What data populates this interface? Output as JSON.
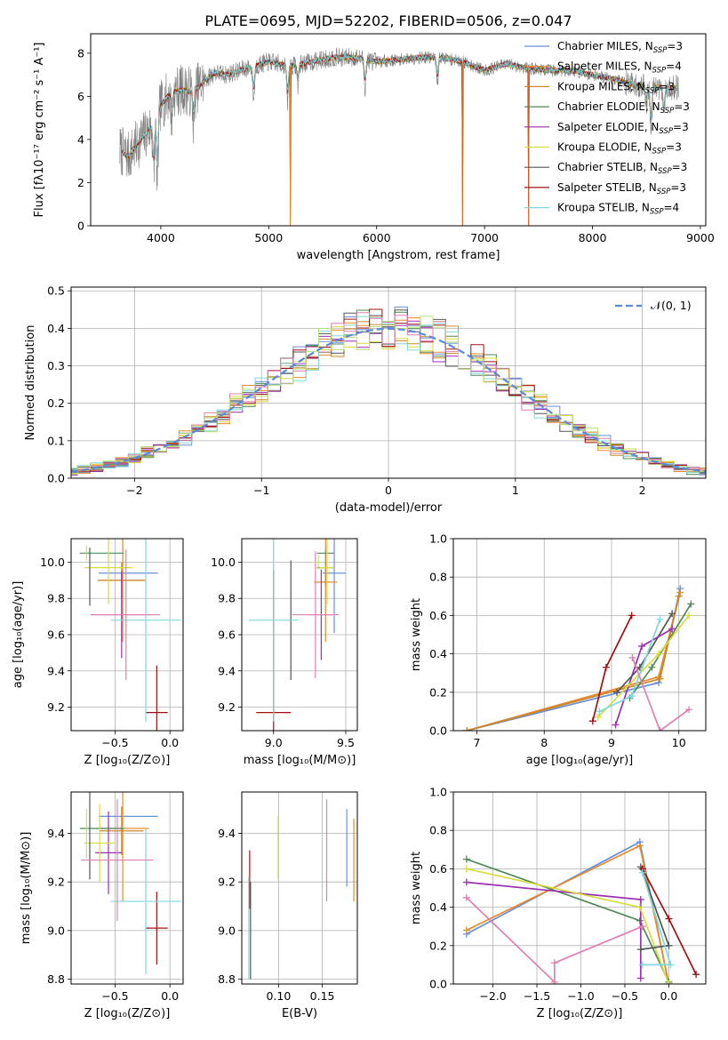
{
  "figure_title": "PLATE=0695, MJD=52202, FIBERID=0506, z=0.047",
  "colors": {
    "Chabrier MILES": "#6a8fd9",
    "Salpeter MILES": "#e8892a",
    "Kroupa MILES": "#c8882a",
    "Chabrier ELODIE": "#4f8a55",
    "Salpeter ELODIE": "#9a2fb0",
    "Kroupa ELODIE": "#d6dc3c",
    "Chabrier STELIB": "#555555",
    "Salpeter STELIB": "#a01010",
    "Kroupa STELIB": "#7fd8dc",
    "pink": "#e07fb0",
    "green2": "#b8e07a"
  },
  "chart_data": [
    {
      "id": "spectrum",
      "type": "line",
      "title": "PLATE=0695, MJD=52202, FIBERID=0506, z=0.047",
      "xlabel": "wavelength [Angstrom, rest frame]",
      "ylabel": "Flux [fλ10⁻¹⁷ erg cm⁻² s⁻¹ A⁻¹]",
      "xlim": [
        3350,
        9050
      ],
      "ylim": [
        0,
        8.9
      ],
      "xticks": [
        4000,
        5000,
        6000,
        7000,
        8000,
        9000
      ],
      "yticks": [
        0,
        2,
        4,
        6,
        8
      ],
      "legend_position": "top-right",
      "legend": [
        {
          "label": "Chabrier MILES, N",
          "sub": "SSP",
          "tail": "=3",
          "color": "#6a8fd9"
        },
        {
          "label": "Salpeter MILES, N",
          "sub": "SSP",
          "tail": "=4",
          "color": "#e8892a"
        },
        {
          "label": "Kroupa MILES, N",
          "sub": "SSP",
          "tail": "=3",
          "color": "#c8882a"
        },
        {
          "label": "Chabrier ELODIE, N",
          "sub": "SSP",
          "tail": "=3",
          "color": "#4f8a55"
        },
        {
          "label": "Salpeter ELODIE, N",
          "sub": "SSP",
          "tail": "=3",
          "color": "#9a2fb0"
        },
        {
          "label": "Kroupa ELODIE, N",
          "sub": "SSP",
          "tail": "=3",
          "color": "#d6dc3c"
        },
        {
          "label": "Chabrier STELIB, N",
          "sub": "SSP",
          "tail": "=3",
          "color": "#555555"
        },
        {
          "label": "Salpeter STELIB, N",
          "sub": "SSP",
          "tail": "=3",
          "color": "#a01010"
        },
        {
          "label": "Kroupa STELIB, N",
          "sub": "SSP",
          "tail": "=4",
          "color": "#7fd8dc"
        }
      ],
      "continuum_nodes": [
        [
          3620,
          3.5
        ],
        [
          3700,
          3.2
        ],
        [
          3800,
          3.9
        ],
        [
          3900,
          4.5
        ],
        [
          4000,
          5.6
        ],
        [
          4100,
          6.2
        ],
        [
          4200,
          6.3
        ],
        [
          4300,
          6.2
        ],
        [
          4400,
          6.7
        ],
        [
          4500,
          7.1
        ],
        [
          4600,
          7.0
        ],
        [
          4800,
          7.3
        ],
        [
          5000,
          7.6
        ],
        [
          5200,
          7.4
        ],
        [
          5400,
          7.6
        ],
        [
          5600,
          7.8
        ],
        [
          5800,
          7.8
        ],
        [
          6000,
          7.6
        ],
        [
          6200,
          7.7
        ],
        [
          6400,
          7.8
        ],
        [
          6600,
          7.8
        ],
        [
          6800,
          7.6
        ],
        [
          7000,
          7.2
        ],
        [
          7200,
          7.5
        ],
        [
          7400,
          7.3
        ],
        [
          7600,
          7.2
        ],
        [
          7800,
          7.2
        ],
        [
          8000,
          7.0
        ],
        [
          8200,
          6.8
        ],
        [
          8400,
          6.5
        ],
        [
          8600,
          6.4
        ],
        [
          8800,
          6.4
        ]
      ],
      "absorption_lines": [
        [
          3934,
          2.4
        ],
        [
          3968,
          2.0
        ],
        [
          4102,
          5.0
        ],
        [
          4304,
          4.8
        ],
        [
          4861,
          5.9
        ],
        [
          5175,
          5.7
        ],
        [
          5270,
          6.5
        ],
        [
          5893,
          6.4
        ],
        [
          6563,
          6.6
        ],
        [
          8498,
          5.5
        ],
        [
          8542,
          4.4
        ],
        [
          8662,
          5.0
        ]
      ],
      "data_dropouts": [
        [
          5199,
          0
        ],
        [
          6795,
          0
        ],
        [
          7410,
          0
        ]
      ]
    },
    {
      "id": "residuals",
      "type": "histogram",
      "xlabel": "(data-model)/error",
      "ylabel": "Normed distribution",
      "xlim": [
        -2.5,
        2.5
      ],
      "ylim": [
        0,
        0.51
      ],
      "xticks": [
        -2,
        -1,
        0,
        1,
        2
      ],
      "yticks": [
        0.0,
        0.1,
        0.2,
        0.3,
        0.4,
        0.5
      ],
      "bin_width": 0.1,
      "legend_position": "top-right",
      "legend_label": "𝒩(0, 1)",
      "gaussian": {
        "mean": 0,
        "sigma": 1,
        "color": "#5b8ad6"
      }
    },
    {
      "id": "age-vs-Z",
      "type": "errorbar",
      "xlabel": "Z [log₁₀(Z/Z⊙)]",
      "ylabel": "age  [log₁₀(age/yr)]",
      "xlim": [
        -0.9,
        0.12
      ],
      "ylim": [
        9.07,
        10.13
      ],
      "xticks": [
        -0.5,
        0.0
      ],
      "yticks": [
        9.2,
        9.4,
        9.6,
        9.8,
        10.0
      ],
      "points": [
        {
          "x": -0.38,
          "y": 9.94,
          "xerr": 0.27,
          "yerr": 0.0,
          "color": "#6a8fd9"
        },
        {
          "x": -0.43,
          "y": 9.9,
          "xerr": 0.2,
          "yerr": 0.34,
          "color": "#e8892a"
        },
        {
          "x": -0.44,
          "y": 9.9,
          "xerr": 0.22,
          "yerr": 0.1,
          "color": "#c8882a"
        },
        {
          "x": -0.62,
          "y": 10.05,
          "xerr": 0.2,
          "yerr": 0.0,
          "color": "#4f8a55"
        },
        {
          "x": -0.44,
          "y": 9.71,
          "xerr": 0.28,
          "yerr": 0.24,
          "color": "#9a2fb0"
        },
        {
          "x": -0.56,
          "y": 9.97,
          "xerr": 0.22,
          "yerr": 0.2,
          "color": "#d6dc3c"
        },
        {
          "x": -0.73,
          "y": 9.92,
          "xerr": 0.0,
          "yerr": 0.16,
          "color": "#555555"
        },
        {
          "x": -0.12,
          "y": 9.17,
          "xerr": 0.1,
          "yerr": 0.26,
          "color": "#a01010"
        },
        {
          "x": -0.22,
          "y": 9.68,
          "xerr": 0.32,
          "yerr": 0.56,
          "color": "#7fd8dc"
        },
        {
          "x": -0.4,
          "y": 9.71,
          "xerr": 0.31,
          "yerr": 0.36,
          "color": "#e07fb0"
        },
        {
          "x": -0.76,
          "y": 10.05,
          "xerr": 0.0,
          "yerr": 0.04,
          "color": "#b8e07a"
        }
      ]
    },
    {
      "id": "age-vs-mass",
      "type": "errorbar",
      "xlabel": "mass [log₁₀(M/M⊙)]",
      "ylabel": "",
      "xlim": [
        8.78,
        9.58
      ],
      "ylim": [
        9.07,
        10.13
      ],
      "xticks": [
        9.0,
        9.5
      ],
      "yticks": [
        9.2,
        9.4,
        9.6,
        9.8,
        10.0
      ],
      "points": [
        {
          "x": 9.42,
          "y": 9.94,
          "xerr": 0.08,
          "yerr": 0.33,
          "color": "#6a8fd9"
        },
        {
          "x": 9.36,
          "y": 9.89,
          "xerr": 0.08,
          "yerr": 0.33,
          "color": "#e8892a"
        },
        {
          "x": 9.36,
          "y": 9.97,
          "xerr": 0.06,
          "yerr": 0.1,
          "color": "#c8882a"
        },
        {
          "x": 9.36,
          "y": 10.05,
          "xerr": 0.06,
          "yerr": 0.0,
          "color": "#4f8a55"
        },
        {
          "x": 9.33,
          "y": 9.71,
          "xerr": 0.08,
          "yerr": 0.25,
          "color": "#9a2fb0"
        },
        {
          "x": 9.37,
          "y": 9.97,
          "xerr": 0.05,
          "yerr": 0.2,
          "color": "#d6dc3c"
        },
        {
          "x": 9.12,
          "y": 9.68,
          "xerr": 0.0,
          "yerr": 0.33,
          "color": "#555555"
        },
        {
          "x": 9.0,
          "y": 9.17,
          "xerr": 0.12,
          "yerr": 0.79,
          "color": "#a01010"
        },
        {
          "x": 9.0,
          "y": 9.68,
          "xerr": 0.17,
          "yerr": 0.56,
          "color": "#7fd8dc"
        },
        {
          "x": 9.29,
          "y": 9.71,
          "xerr": 0.16,
          "yerr": 0.35,
          "color": "#e07fb0"
        },
        {
          "x": 9.31,
          "y": 10.0,
          "xerr": 0.03,
          "yerr": 0.04,
          "color": "#b8e07a"
        }
      ]
    },
    {
      "id": "mass-weight-vs-age",
      "type": "line",
      "xlabel": "age  [log₁₀(age/yr)]",
      "ylabel": "mass weight",
      "xlim": [
        6.65,
        10.4
      ],
      "ylim": [
        0,
        1.0
      ],
      "xticks": [
        7,
        8,
        9,
        10
      ],
      "yticks": [
        0.0,
        0.2,
        0.4,
        0.6,
        0.8,
        1.0
      ],
      "series": [
        {
          "color": "#6a8fd9",
          "points": [
            [
              6.85,
              0.0
            ],
            [
              9.7,
              0.25
            ],
            [
              10.02,
              0.74
            ]
          ]
        },
        {
          "color": "#e8892a",
          "points": [
            [
              6.85,
              0.0
            ],
            [
              9.7,
              0.28
            ],
            [
              10.02,
              0.72
            ]
          ]
        },
        {
          "color": "#c8882a",
          "points": [
            [
              6.85,
              0.0
            ],
            [
              9.72,
              0.27
            ],
            [
              10.0,
              0.7
            ]
          ]
        },
        {
          "color": "#4f8a55",
          "points": [
            [
              9.27,
              0.17
            ],
            [
              9.6,
              0.33
            ],
            [
              10.18,
              0.66
            ]
          ]
        },
        {
          "color": "#9a2fb0",
          "points": [
            [
              9.06,
              0.03
            ],
            [
              9.45,
              0.44
            ],
            [
              9.9,
              0.53
            ]
          ]
        },
        {
          "color": "#d6dc3c",
          "points": [
            [
              8.8,
              0.07
            ],
            [
              9.7,
              0.4
            ],
            [
              10.15,
              0.6
            ]
          ]
        },
        {
          "color": "#555555",
          "points": [
            [
              9.08,
              0.2
            ],
            [
              9.42,
              0.33
            ],
            [
              9.9,
              0.61
            ]
          ]
        },
        {
          "color": "#a01010",
          "points": [
            [
              8.72,
              0.05
            ],
            [
              8.92,
              0.33
            ],
            [
              9.3,
              0.6
            ]
          ]
        },
        {
          "color": "#7fd8dc",
          "points": [
            [
              8.82,
              0.1
            ],
            [
              9.3,
              0.18
            ],
            [
              9.72,
              0.58
            ]
          ]
        },
        {
          "color": "#e07fb0",
          "points": [
            [
              9.31,
              0.38
            ],
            [
              9.72,
              0.0
            ],
            [
              10.15,
              0.11
            ]
          ]
        }
      ]
    },
    {
      "id": "mass-vs-Z",
      "type": "errorbar",
      "xlabel": "Z [log₁₀(Z/Z⊙)]",
      "ylabel": "mass [log₁₀(M/M⊙)]",
      "xlim": [
        -0.9,
        0.12
      ],
      "ylim": [
        8.78,
        9.57
      ],
      "xticks": [
        -0.5,
        0.0
      ],
      "yticks": [
        8.8,
        9.0,
        9.2,
        9.4
      ],
      "points": [
        {
          "x": -0.38,
          "y": 9.47,
          "xerr": 0.27,
          "yerr": 0.0,
          "color": "#6a8fd9"
        },
        {
          "x": -0.43,
          "y": 9.42,
          "xerr": 0.24,
          "yerr": 0.3,
          "color": "#e8892a"
        },
        {
          "x": -0.44,
          "y": 9.41,
          "xerr": 0.2,
          "yerr": 0.1,
          "color": "#c8882a"
        },
        {
          "x": -0.62,
          "y": 9.42,
          "xerr": 0.2,
          "yerr": 0.0,
          "color": "#4f8a55"
        },
        {
          "x": -0.56,
          "y": 9.32,
          "xerr": 0.12,
          "yerr": 0.17,
          "color": "#9a2fb0"
        },
        {
          "x": -0.64,
          "y": 9.36,
          "xerr": 0.14,
          "yerr": 0.16,
          "color": "#d6dc3c"
        },
        {
          "x": -0.73,
          "y": 9.4,
          "xerr": 0.0,
          "yerr": 0.19,
          "color": "#555555"
        },
        {
          "x": -0.12,
          "y": 9.01,
          "xerr": 0.1,
          "yerr": 0.15,
          "color": "#a01010"
        },
        {
          "x": -0.22,
          "y": 9.12,
          "xerr": 0.32,
          "yerr": 0.3,
          "color": "#7fd8dc"
        },
        {
          "x": -0.48,
          "y": 9.29,
          "xerr": 0.33,
          "yerr": 0.25,
          "color": "#e07fb0"
        },
        {
          "x": -0.76,
          "y": 9.4,
          "xerr": 0.0,
          "yerr": 0.1,
          "color": "#b8e07a"
        }
      ]
    },
    {
      "id": "mass-vs-EBV",
      "type": "errorbar",
      "xlabel": "E(B-V)",
      "ylabel": "",
      "xlim": [
        0.058,
        0.19
      ],
      "ylim": [
        8.78,
        9.57
      ],
      "xticks": [
        0.1,
        0.15
      ],
      "yticks": [
        8.8,
        9.0,
        9.2,
        9.4
      ],
      "points": [
        {
          "x": 0.178,
          "y": 9.34,
          "xerr": 0.0,
          "yerr": 0.16,
          "color": "#6a8fd9"
        },
        {
          "x": 0.186,
          "y": 9.29,
          "xerr": 0.0,
          "yerr": 0.17,
          "color": "#e8892a"
        },
        {
          "x": 0.1,
          "y": 9.34,
          "xerr": 0.0,
          "yerr": 0.13,
          "color": "#c8882a"
        },
        {
          "x": 0.1,
          "y": 9.34,
          "xerr": 0.0,
          "yerr": 0.13,
          "color": "#4f8a55"
        },
        {
          "x": 0.1,
          "y": 9.34,
          "xerr": 0.0,
          "yerr": 0.13,
          "color": "#d6dc3c"
        },
        {
          "x": 0.067,
          "y": 9.21,
          "xerr": 0.0,
          "yerr": 0.12,
          "color": "#a01010"
        },
        {
          "x": 0.066,
          "y": 9.01,
          "xerr": 0.0,
          "yerr": 0.21,
          "color": "#7fd8dc"
        },
        {
          "x": 0.155,
          "y": 9.33,
          "xerr": 0.0,
          "yerr": 0.21,
          "color": "#e07fb0"
        },
        {
          "x": 0.068,
          "y": 9.0,
          "xerr": 0.0,
          "yerr": 0.2,
          "color": "#555555"
        }
      ]
    },
    {
      "id": "mass-weight-vs-Z",
      "type": "line",
      "xlabel": "Z [log₁₀(Z/Z⊙)]",
      "ylabel": "mass weight",
      "xlim": [
        -2.45,
        0.42
      ],
      "ylim": [
        0,
        1.0
      ],
      "xticks": [
        -2.0,
        -1.5,
        -1.0,
        -0.5,
        0.0
      ],
      "yticks": [
        0.0,
        0.2,
        0.4,
        0.6,
        0.8,
        1.0
      ],
      "series": [
        {
          "color": "#6a8fd9",
          "points": [
            [
              -2.3,
              0.26
            ],
            [
              -0.33,
              0.74
            ],
            [
              0.0,
              0.0
            ]
          ]
        },
        {
          "color": "#e8892a",
          "points": [
            [
              -2.3,
              0.28
            ],
            [
              -0.33,
              0.72
            ],
            [
              0.0,
              0.0
            ]
          ]
        },
        {
          "color": "#4f8a55",
          "points": [
            [
              -2.3,
              0.65
            ],
            [
              -0.33,
              0.33
            ],
            [
              0.0,
              0.01
            ]
          ]
        },
        {
          "color": "#9a2fb0",
          "points": [
            [
              -2.3,
              0.53
            ],
            [
              -0.32,
              0.44
            ],
            [
              -0.32,
              0.03
            ]
          ]
        },
        {
          "color": "#d6dc3c",
          "points": [
            [
              -2.3,
              0.6
            ],
            [
              -0.33,
              0.4
            ],
            [
              0.0,
              0.0
            ]
          ]
        },
        {
          "color": "#555555",
          "points": [
            [
              -0.32,
              0.61
            ],
            [
              0.0,
              0.2
            ],
            [
              -0.32,
              0.18
            ]
          ]
        },
        {
          "color": "#a01010",
          "points": [
            [
              -0.3,
              0.6
            ],
            [
              0.0,
              0.34
            ],
            [
              0.31,
              0.05
            ]
          ]
        },
        {
          "color": "#7fd8dc",
          "points": [
            [
              -0.3,
              0.58
            ],
            [
              0.02,
              0.1
            ],
            [
              -0.3,
              0.1
            ]
          ]
        },
        {
          "color": "#e07fb0",
          "points": [
            [
              -2.3,
              0.45
            ],
            [
              -1.3,
              0.01
            ],
            [
              -1.3,
              0.11
            ],
            [
              -0.3,
              0.3
            ]
          ]
        }
      ]
    }
  ]
}
